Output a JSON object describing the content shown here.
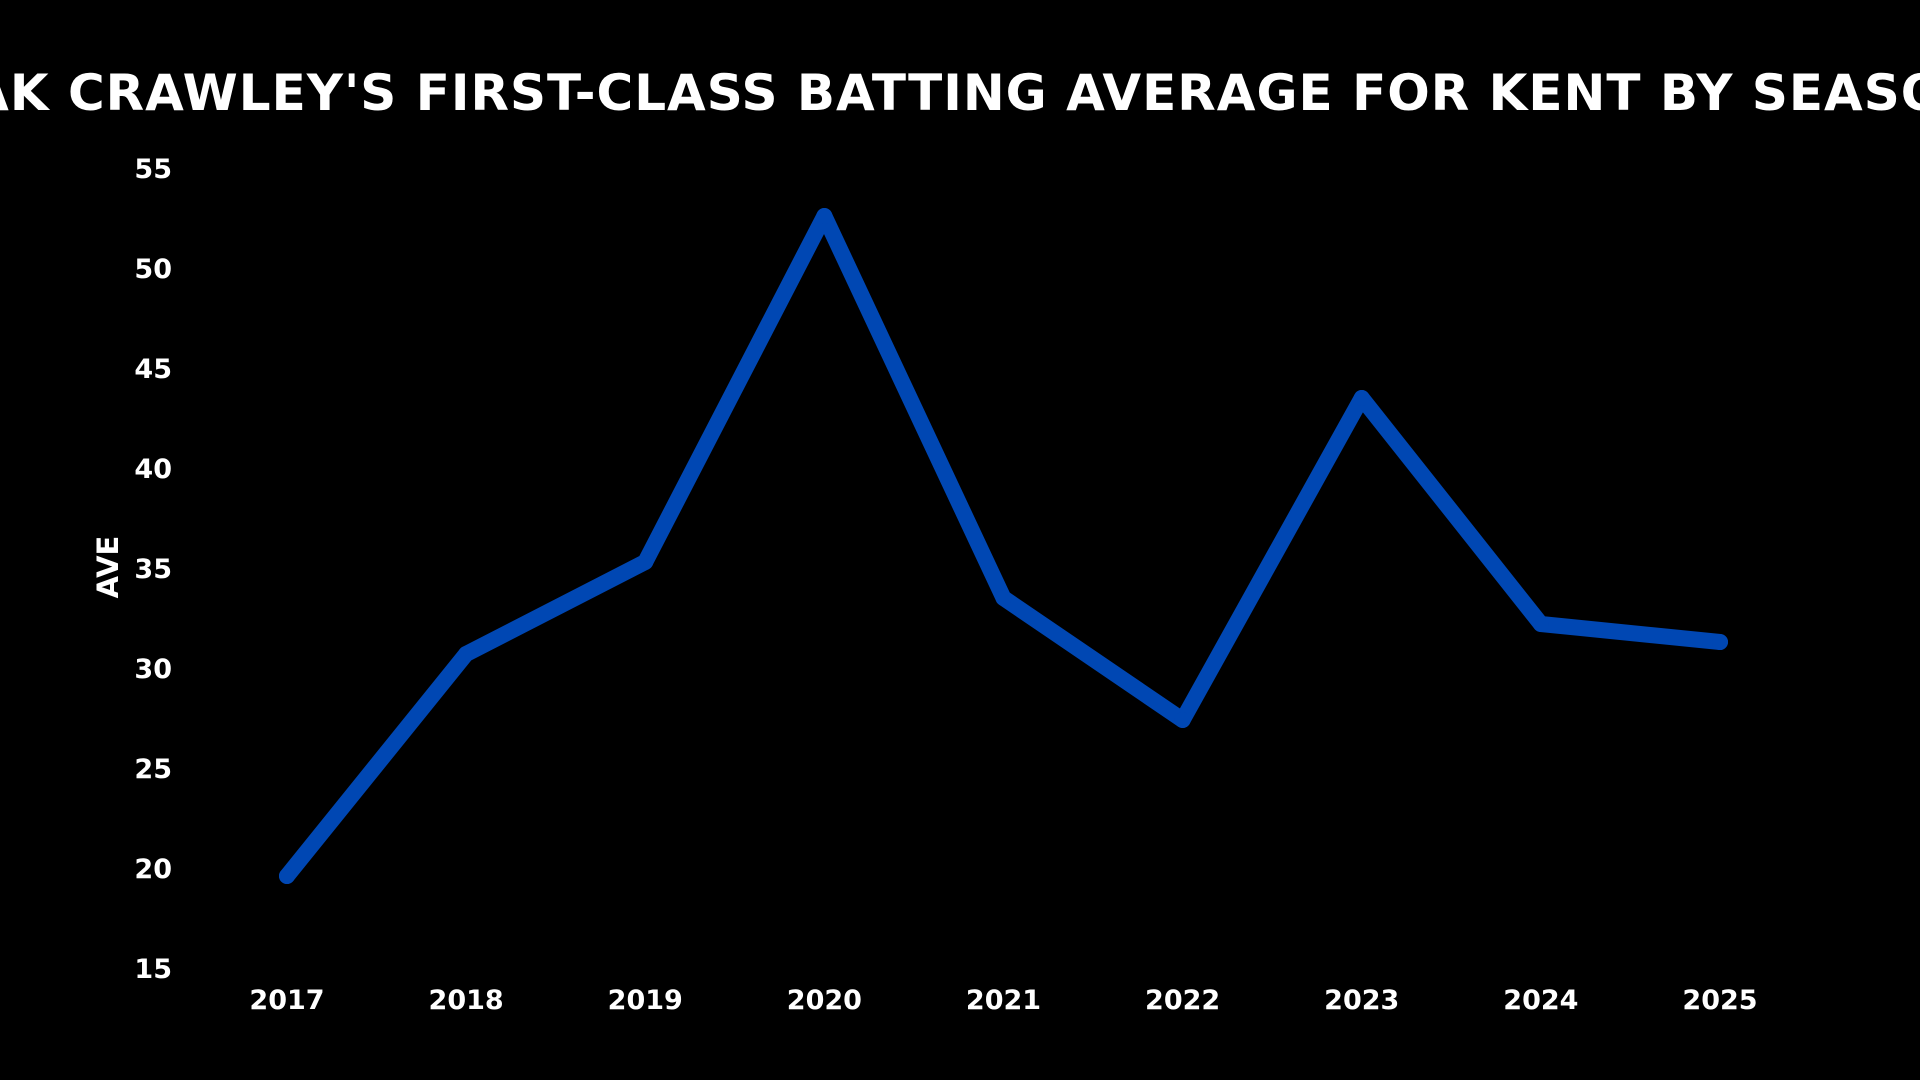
{
  "chart_data": {
    "type": "line",
    "title": "ZAK CRAWLEY'S FIRST-CLASS BATTING AVERAGE FOR KENT BY SEASON",
    "xlabel": "",
    "ylabel": "AVE",
    "x": [
      "2017",
      "2018",
      "2019",
      "2020",
      "2021",
      "2022",
      "2023",
      "2024",
      "2025"
    ],
    "series": [
      {
        "values": [
          19.6,
          30.7,
          35.3,
          52.6,
          33.5,
          27.4,
          43.5,
          32.2,
          31.3
        ],
        "color": "#0047b3"
      }
    ],
    "yticks": [
      15,
      20,
      25,
      30,
      35,
      40,
      45,
      50,
      55
    ],
    "ylim": [
      15,
      55
    ],
    "grid": false,
    "legend": "none",
    "background": "#000000",
    "text_color": "#ffffff"
  }
}
